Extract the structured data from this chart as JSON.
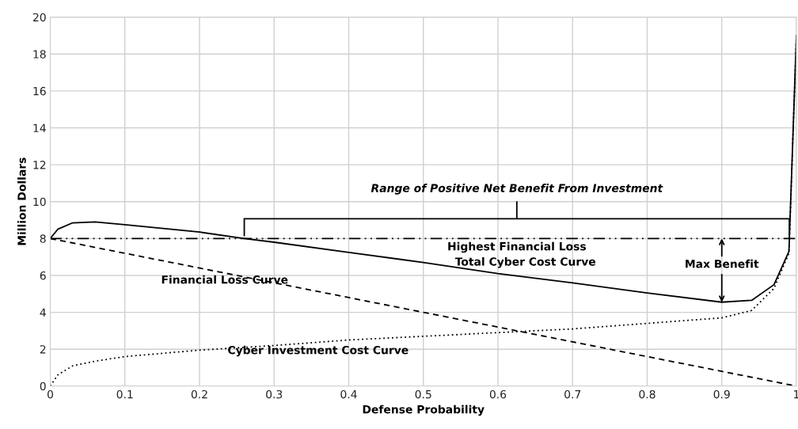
{
  "chart_data": {
    "type": "line",
    "xlabel": "Defense Probability",
    "ylabel": "Million Dollars",
    "xlim": [
      0,
      1
    ],
    "ylim": [
      0,
      20
    ],
    "xticks": [
      0,
      0.1,
      0.2,
      0.3,
      0.4,
      0.5,
      0.6,
      0.7,
      0.8,
      0.9,
      1
    ],
    "yticks": [
      0,
      2,
      4,
      6,
      8,
      10,
      12,
      14,
      16,
      18,
      20
    ],
    "grid": true,
    "legend": false,
    "marker": "none",
    "series": [
      {
        "name": "Total Cyber Cost Curve",
        "color": "#000000",
        "line_style": "solid",
        "x": [
          0,
          0.01,
          0.03,
          0.06,
          0.1,
          0.2,
          0.26,
          0.3,
          0.4,
          0.5,
          0.6,
          0.7,
          0.8,
          0.9,
          0.94,
          0.97,
          0.99,
          1
        ],
        "values": [
          8,
          8.5,
          8.85,
          8.9,
          8.75,
          8.35,
          8.0,
          7.8,
          7.25,
          6.7,
          6.1,
          5.6,
          5.05,
          4.55,
          4.65,
          5.5,
          7.3,
          19
        ]
      },
      {
        "name": "Financial Loss Curve",
        "color": "#000000",
        "line_style": "dashed",
        "x": [
          0,
          0.1,
          0.2,
          0.3,
          0.4,
          0.5,
          0.6,
          0.7,
          0.8,
          0.9,
          1
        ],
        "values": [
          8,
          7.2,
          6.4,
          5.6,
          4.8,
          4,
          3.2,
          2.4,
          1.6,
          0.8,
          0
        ]
      },
      {
        "name": "Cyber Investment Cost Curve",
        "color": "#000000",
        "line_style": "dotted",
        "x": [
          0,
          0.01,
          0.03,
          0.06,
          0.1,
          0.2,
          0.3,
          0.4,
          0.5,
          0.6,
          0.7,
          0.8,
          0.9,
          0.94,
          0.97,
          0.99,
          1
        ],
        "values": [
          0,
          0.6,
          1.1,
          1.35,
          1.6,
          1.95,
          2.2,
          2.5,
          2.7,
          2.9,
          3.1,
          3.4,
          3.7,
          4.1,
          5.3,
          7.2,
          19
        ]
      }
    ],
    "ref_lines": [
      {
        "axis": "y",
        "value": 8,
        "label": "Highest Financial Loss",
        "color": "#000000",
        "line_style": "dashdotdot"
      }
    ],
    "annotations": [
      "Range of Positive Net Benefit From Investment",
      {
        "text": "Max Benefit",
        "x": 0.9,
        "y": 4.55
      }
    ]
  }
}
